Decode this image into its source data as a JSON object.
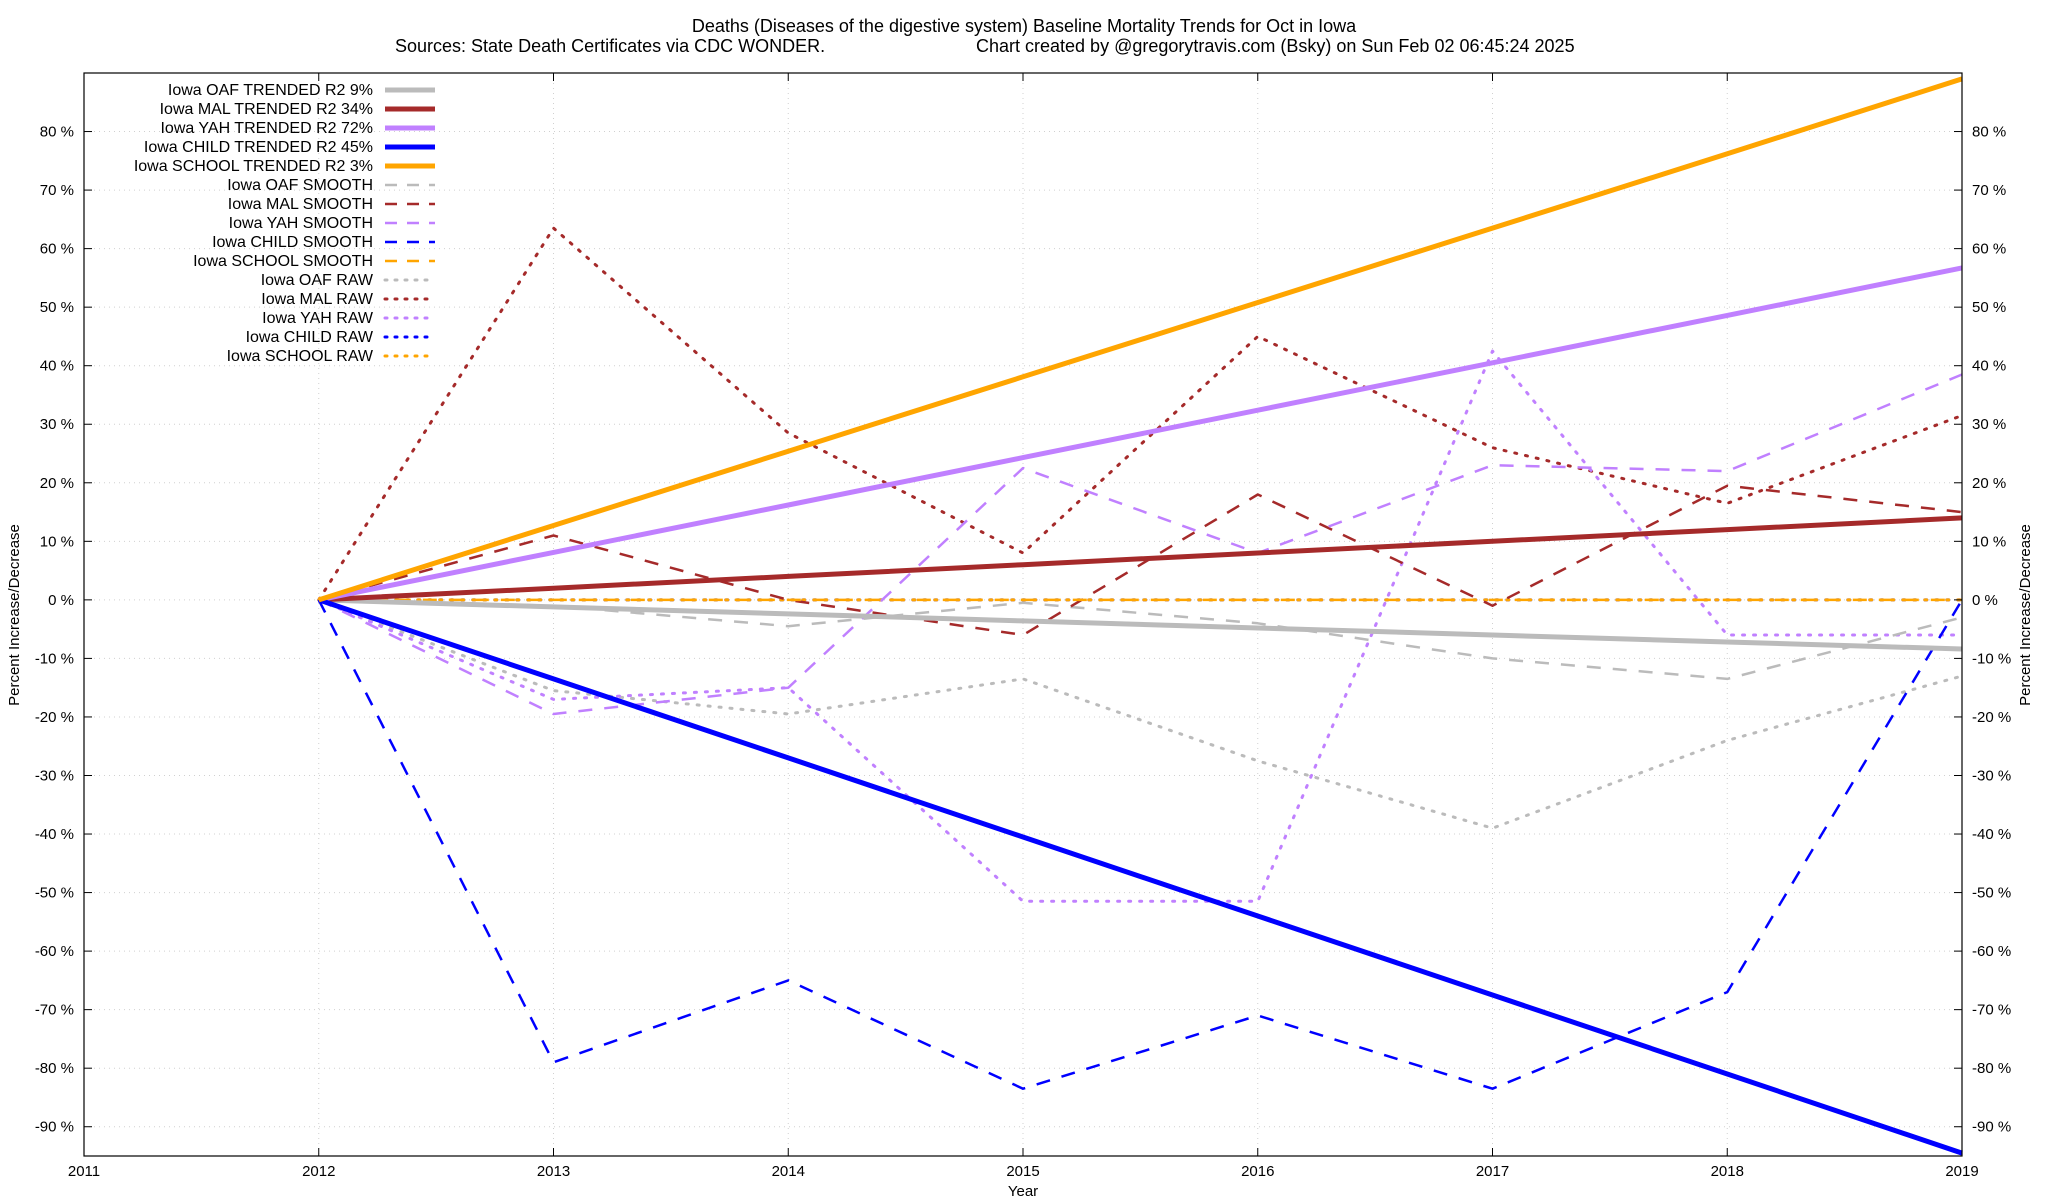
{
  "chart_data": {
    "type": "line",
    "title_line1": "Deaths (Diseases of the digestive system)  Baseline Mortality Trends for Oct in Iowa",
    "title_line2_left": "Sources: State Death Certificates via CDC WONDER.",
    "title_line2_right": "Chart created by @gregorytravis.com (Bsky) on Sun Feb 02 06:45:24 2025",
    "xlabel": "Year",
    "ylabel_left": "Percent Increase/Decrease",
    "ylabel_right": "Percent Increase/Decrease",
    "xlim": [
      2011,
      2019
    ],
    "ylim": [
      -95,
      90
    ],
    "x_ticks": [
      2011,
      2012,
      2013,
      2014,
      2015,
      2016,
      2017,
      2018,
      2019
    ],
    "y_ticks": [
      -90,
      -80,
      -70,
      -60,
      -50,
      -40,
      -30,
      -20,
      -10,
      0,
      10,
      20,
      30,
      40,
      50,
      60,
      70,
      80
    ],
    "y_tick_suffix": " %",
    "grid": true,
    "legend_position": "top-left",
    "x": [
      2012,
      2013,
      2014,
      2015,
      2016,
      2017,
      2018,
      2019
    ],
    "series": [
      {
        "name": "Iowa OAF TRENDED R2  9%",
        "style": "trend",
        "color": "#bbbbbb",
        "values": [
          0,
          -1.2,
          -2.4,
          -3.6,
          -4.8,
          -6,
          -7.2,
          -8.4
        ]
      },
      {
        "name": "Iowa MAL TRENDED R2  34%",
        "style": "trend",
        "color": "#a52a2a",
        "values": [
          0,
          2,
          4,
          6,
          8,
          10,
          12,
          14
        ]
      },
      {
        "name": "Iowa YAH TRENDED R2  72%",
        "style": "trend",
        "color": "#c080ff",
        "values": [
          0,
          8.1,
          16.2,
          24.3,
          32.4,
          40.5,
          48.6,
          56.7
        ]
      },
      {
        "name": "Iowa CHILD TRENDED R2  45%",
        "style": "trend",
        "color": "#0000ff",
        "values": [
          0,
          -13.5,
          -27,
          -40.5,
          -54,
          -67.5,
          -81,
          -94.5
        ]
      },
      {
        "name": "Iowa SCHOOL TRENDED R2  3%",
        "style": "trend",
        "color": "#ffa500",
        "values": [
          0,
          12.7,
          25.4,
          38.1,
          50.8,
          63.5,
          76.2,
          89
        ]
      },
      {
        "name": "Iowa OAF SMOOTH",
        "style": "smooth",
        "color": "#bbbbbb",
        "values": [
          0,
          -1,
          -4.5,
          -0.5,
          -4,
          -10,
          -13.5,
          -3
        ]
      },
      {
        "name": "Iowa MAL SMOOTH",
        "style": "smooth",
        "color": "#a52a2a",
        "values": [
          0,
          11,
          0,
          -6,
          18,
          -1,
          19.5,
          15
        ]
      },
      {
        "name": "Iowa YAH SMOOTH",
        "style": "smooth",
        "color": "#c080ff",
        "values": [
          0,
          -19.5,
          -15,
          22.5,
          8,
          23,
          22,
          38.5
        ]
      },
      {
        "name": "Iowa CHILD SMOOTH",
        "style": "smooth",
        "color": "#0000ff",
        "values": [
          0,
          -79,
          -65,
          -83.5,
          -71,
          -83.5,
          -67,
          0
        ]
      },
      {
        "name": "Iowa SCHOOL SMOOTH",
        "style": "smooth",
        "color": "#ffa500",
        "values": [
          0,
          0,
          0,
          0,
          0,
          0,
          0,
          0
        ]
      },
      {
        "name": "Iowa OAF RAW",
        "style": "raw",
        "color": "#bbbbbb",
        "values": [
          0,
          -15.5,
          -19.5,
          -13.5,
          -27.5,
          -39,
          -24,
          -13
        ]
      },
      {
        "name": "Iowa MAL RAW",
        "style": "raw",
        "color": "#a52a2a",
        "values": [
          0,
          63.5,
          28.5,
          8,
          45,
          26,
          16.5,
          31.5
        ]
      },
      {
        "name": "Iowa YAH RAW",
        "style": "raw",
        "color": "#c080ff",
        "values": [
          0,
          -17,
          -15,
          -51.5,
          -51.5,
          42.5,
          -6,
          -6
        ]
      },
      {
        "name": "Iowa CHILD RAW",
        "style": "raw",
        "color": "#0000ff",
        "values": [
          0,
          0,
          0,
          0,
          0,
          0,
          0,
          0
        ]
      },
      {
        "name": "Iowa SCHOOL RAW",
        "style": "raw",
        "color": "#ffa500",
        "values": [
          0,
          0,
          0,
          0,
          0,
          0,
          0,
          0
        ]
      }
    ]
  }
}
